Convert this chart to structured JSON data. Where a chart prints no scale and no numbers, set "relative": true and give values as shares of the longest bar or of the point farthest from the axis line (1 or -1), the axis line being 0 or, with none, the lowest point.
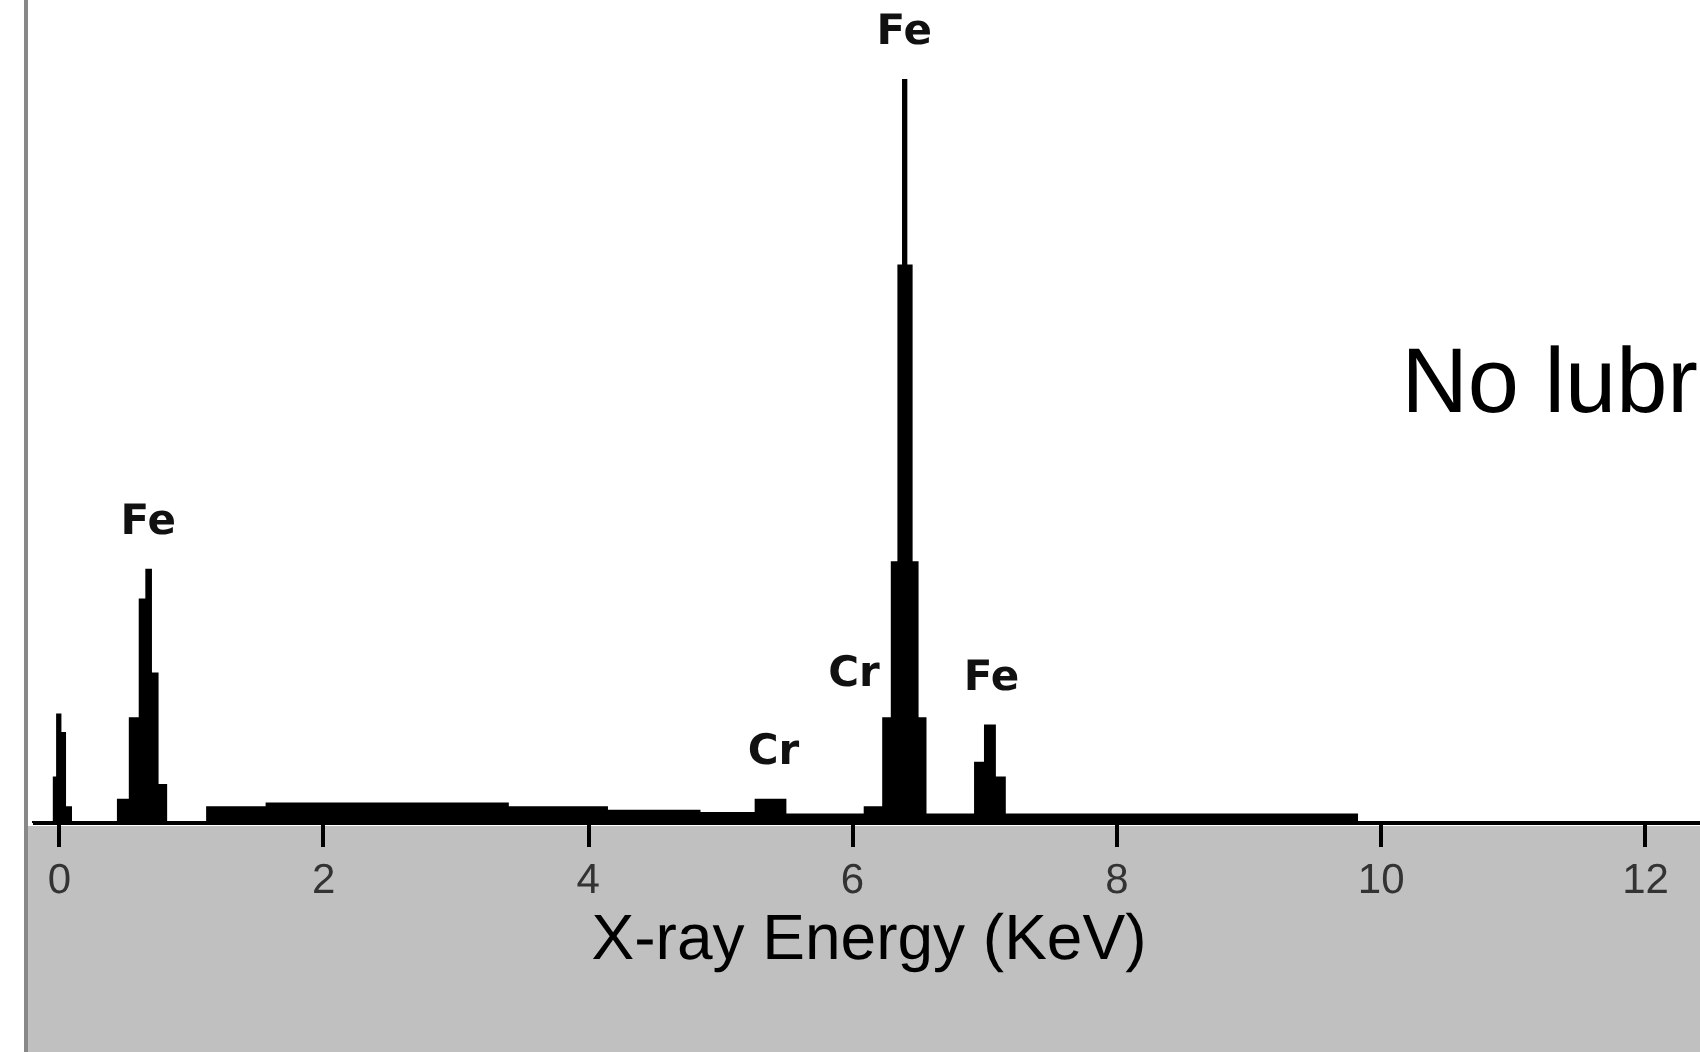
{
  "chart_data": {
    "type": "area",
    "relative": true,
    "xlabel": "X-ray Energy (KeV)",
    "xlim": [
      -0.2,
      12.45
    ],
    "xticks": [
      0,
      2,
      4,
      6,
      8,
      10,
      12
    ],
    "series": [
      {
        "color": "#000000",
        "x": [
          -0.2,
          -0.05,
          -0.02,
          0.0,
          0.03,
          0.07,
          0.12,
          0.4,
          0.5,
          0.58,
          0.65,
          0.68,
          0.72,
          0.78,
          0.85,
          1.1,
          1.15,
          2.0,
          3.0,
          3.8,
          4.5,
          5.2,
          5.35,
          5.45,
          5.55,
          6.0,
          6.2,
          6.28,
          6.33,
          6.38,
          6.4,
          6.43,
          6.48,
          6.52,
          6.6,
          6.9,
          6.97,
          7.05,
          7.12,
          7.2,
          9.8,
          9.85,
          12.45
        ],
        "values": [
          0,
          0,
          0.06,
          0.145,
          0.12,
          0.02,
          0,
          0,
          0.03,
          0.14,
          0.3,
          0.34,
          0.2,
          0.05,
          0,
          0,
          0.02,
          0.025,
          0.025,
          0.02,
          0.015,
          0.012,
          0.03,
          0.03,
          0.01,
          0.01,
          0.02,
          0.14,
          0.35,
          0.75,
          1.0,
          0.75,
          0.35,
          0.14,
          0.01,
          0.01,
          0.08,
          0.13,
          0.06,
          0.01,
          0.01,
          0,
          0
        ]
      }
    ],
    "annotations": [
      {
        "text": "Fe",
        "x": 0.68,
        "y": 0.34
      },
      {
        "text": "Cr",
        "x": 5.41,
        "y": 0.03
      },
      "Cr",
      {
        "text": "Fe",
        "x": 6.4,
        "y": 1.0
      },
      {
        "text": "Fe",
        "x": 7.06,
        "y": 0.13
      },
      "No lubr"
    ]
  }
}
